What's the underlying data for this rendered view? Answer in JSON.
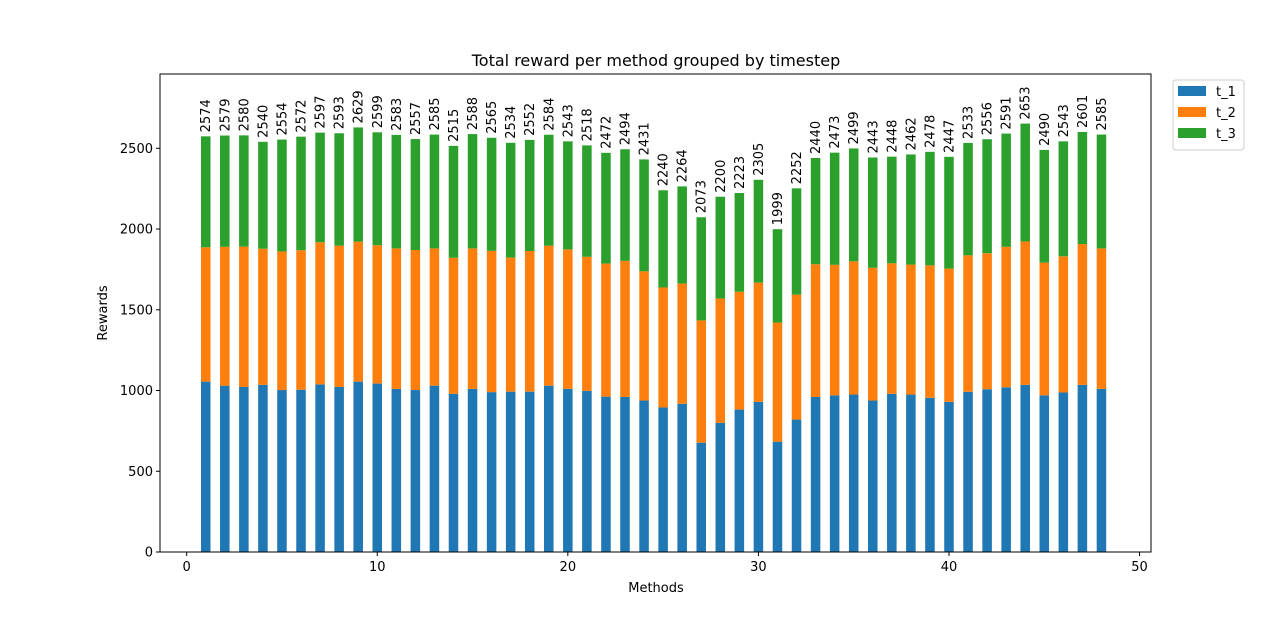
{
  "chart_data": {
    "type": "bar",
    "stacked": true,
    "title": "Total reward per method grouped by timestep",
    "xlabel": "Methods",
    "ylabel": "Rewards",
    "xlim": [
      -1.4,
      50.6
    ],
    "ylim": [
      0,
      2960
    ],
    "xticks": [
      0,
      10,
      20,
      30,
      40,
      50
    ],
    "yticks": [
      0,
      500,
      1000,
      1500,
      2000,
      2500
    ],
    "legend_position": "outside-top-right",
    "x": [
      1,
      2,
      3,
      4,
      5,
      6,
      7,
      8,
      9,
      10,
      11,
      12,
      13,
      14,
      15,
      16,
      17,
      18,
      19,
      20,
      21,
      22,
      23,
      24,
      25,
      26,
      27,
      28,
      29,
      30,
      31,
      32,
      33,
      34,
      35,
      36,
      37,
      38,
      39,
      40,
      41,
      42,
      43,
      44,
      45,
      46,
      47,
      48
    ],
    "series": [
      {
        "name": "t_1",
        "color": "#1f77b4",
        "values": [
          1055,
          1030,
          1022,
          1035,
          1003,
          1005,
          1038,
          1022,
          1055,
          1043,
          1010,
          1003,
          1030,
          980,
          1010,
          990,
          993,
          993,
          1030,
          1010,
          998,
          962,
          960,
          938,
          895,
          918,
          677,
          800,
          882,
          930,
          683,
          820,
          960,
          970,
          975,
          938,
          980,
          975,
          955,
          930,
          992,
          1008,
          1020,
          1035,
          970,
          988,
          1035,
          1010
        ]
      },
      {
        "name": "t_2",
        "color": "#ff7f0e",
        "values": [
          832,
          860,
          869,
          843,
          858,
          864,
          880,
          875,
          867,
          857,
          870,
          867,
          850,
          842,
          870,
          875,
          830,
          871,
          867,
          864,
          830,
          824,
          843,
          800,
          743,
          744,
          757,
          770,
          730,
          738,
          738,
          774,
          822,
          808,
          825,
          822,
          808,
          805,
          820,
          825,
          845,
          842,
          870,
          888,
          822,
          843,
          872,
          870
        ]
      },
      {
        "name": "t_3",
        "color": "#2ca02c",
        "values": [
          687,
          689,
          689,
          662,
          693,
          703,
          679,
          696,
          707,
          699,
          703,
          687,
          705,
          693,
          708,
          700,
          711,
          688,
          687,
          669,
          690,
          686,
          691,
          693,
          602,
          602,
          639,
          630,
          611,
          637,
          578,
          658,
          658,
          695,
          699,
          683,
          660,
          682,
          703,
          692,
          696,
          706,
          701,
          730,
          698,
          712,
          694,
          705
        ]
      }
    ],
    "totals": [
      2574,
      2579,
      2580,
      2540,
      2554,
      2572,
      2597,
      2593,
      2629,
      2599,
      2583,
      2557,
      2585,
      2515,
      2588,
      2565,
      2534,
      2552,
      2584,
      2543,
      2518,
      2472,
      2494,
      2431,
      2240,
      2264,
      2073,
      2200,
      2223,
      2305,
      1999,
      2252,
      2440,
      2473,
      2499,
      2443,
      2448,
      2462,
      2478,
      2447,
      2533,
      2556,
      2591,
      2653,
      2490,
      2543,
      2601,
      2585
    ]
  }
}
